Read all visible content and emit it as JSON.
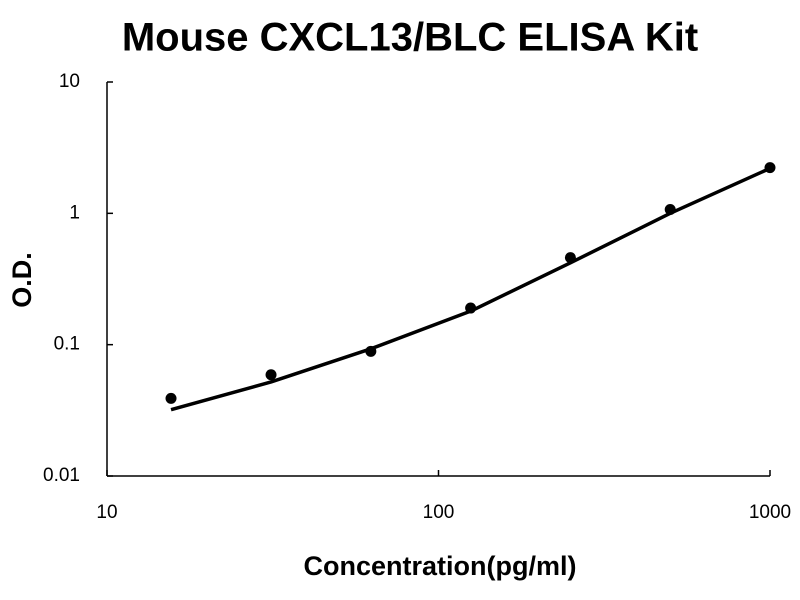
{
  "chart_data": {
    "type": "scatter",
    "title": "Mouse CXCL13/BLC ELISA Kit",
    "x_label": "Concentration(pg/ml)",
    "y_label": "O.D.",
    "x_scale": "log",
    "y_scale": "log",
    "xlim": [
      10,
      1000
    ],
    "xticks": [
      10,
      100,
      1000
    ],
    "ylim": [
      0.01,
      10
    ],
    "yticks": [
      0.01,
      0.1,
      1,
      10
    ],
    "series": [
      {
        "color": "#000000",
        "marker": "circle",
        "x": [
          15.6,
          31.25,
          62.5,
          125,
          250,
          500,
          1000
        ],
        "values": [
          0.039,
          0.059,
          0.089,
          0.19,
          0.46,
          1.07,
          2.23
        ]
      },
      {
        "color": "#000000",
        "marker": "line",
        "x": [
          15.6,
          31.25,
          62.5,
          125,
          250,
          500,
          1000
        ],
        "values": [
          0.032,
          0.052,
          0.093,
          0.18,
          0.42,
          1.0,
          2.2
        ]
      }
    ]
  }
}
